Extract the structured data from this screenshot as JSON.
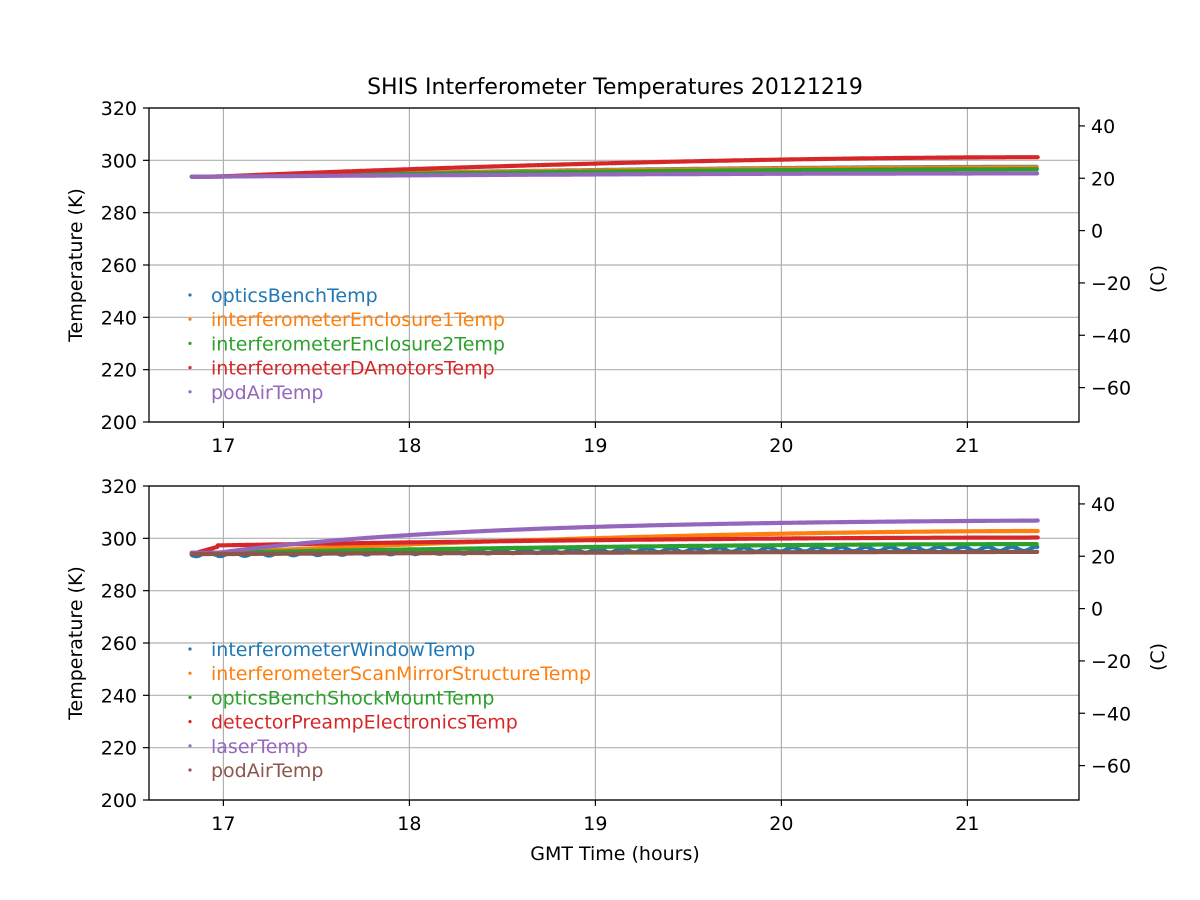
{
  "figure": {
    "title": "SHIS Interferometer Temperatures 20121219",
    "xlabel": "GMT Time (hours)"
  },
  "chart_data": [
    {
      "type": "scatter",
      "title": "SHIS Interferometer Temperatures 20121219",
      "xlabel": "",
      "ylabel": "Temperature (K)",
      "ylabel_right": "(C)",
      "xlim": [
        16.6,
        21.6
      ],
      "ylim": [
        200,
        320
      ],
      "ylim_right": [
        -73.15,
        46.85
      ],
      "xticks": [
        17,
        18,
        19,
        20,
        21
      ],
      "yticks": [
        200,
        220,
        240,
        260,
        280,
        300,
        320
      ],
      "yticks_right": [
        -60,
        -40,
        -20,
        0,
        20,
        40
      ],
      "grid": true,
      "legend_placement": "lower-left",
      "series": [
        {
          "name": "opticsBenchTemp",
          "color": "#1f77b4",
          "start": 293.8,
          "end": 297.5,
          "gap": true
        },
        {
          "name": "interferometerEnclosure1Temp",
          "color": "#ff7f0e",
          "start": 293.8,
          "end": 297.3,
          "gap": true
        },
        {
          "name": "interferometerEnclosure2Temp",
          "color": "#2ca02c",
          "start": 293.8,
          "end": 296.6,
          "gap": true
        },
        {
          "name": "interferometerDAmotorsTemp",
          "color": "#d62728",
          "start": 293.8,
          "end": 301.2,
          "gap": true
        },
        {
          "name": "podAirTemp",
          "color": "#9467bd",
          "start": 293.8,
          "end": 295.0,
          "gap": true
        }
      ]
    },
    {
      "type": "scatter",
      "title": "",
      "xlabel": "GMT Time (hours)",
      "ylabel": "Temperature (K)",
      "ylabel_right": "(C)",
      "xlim": [
        16.6,
        21.6
      ],
      "ylim": [
        200,
        320
      ],
      "ylim_right": [
        -73.15,
        46.85
      ],
      "xticks": [
        17,
        18,
        19,
        20,
        21
      ],
      "yticks": [
        200,
        220,
        240,
        260,
        280,
        300,
        320
      ],
      "yticks_right": [
        -60,
        -40,
        -20,
        0,
        20,
        40
      ],
      "grid": true,
      "legend_placement": "lower-left",
      "series": [
        {
          "name": "interferometerWindowTemp",
          "color": "#1f77b4",
          "start": 294.0,
          "end": 296.0,
          "osc": 1.6
        },
        {
          "name": "interferometerScanMirrorStructureTemp",
          "color": "#ff7f0e",
          "start": 294.5,
          "end": 302.8
        },
        {
          "name": "opticsBenchShockMountTemp",
          "color": "#2ca02c",
          "start": 294.5,
          "end": 297.8
        },
        {
          "name": "detectorPreampElectronicsTemp",
          "color": "#d62728",
          "start": 297.3,
          "end": 300.3
        },
        {
          "name": "laserTemp",
          "color": "#9467bd",
          "start": 294.5,
          "end": 306.8
        },
        {
          "name": "podAirTemp",
          "color": "#8c564b",
          "start": 294.0,
          "end": 294.8
        }
      ]
    }
  ]
}
